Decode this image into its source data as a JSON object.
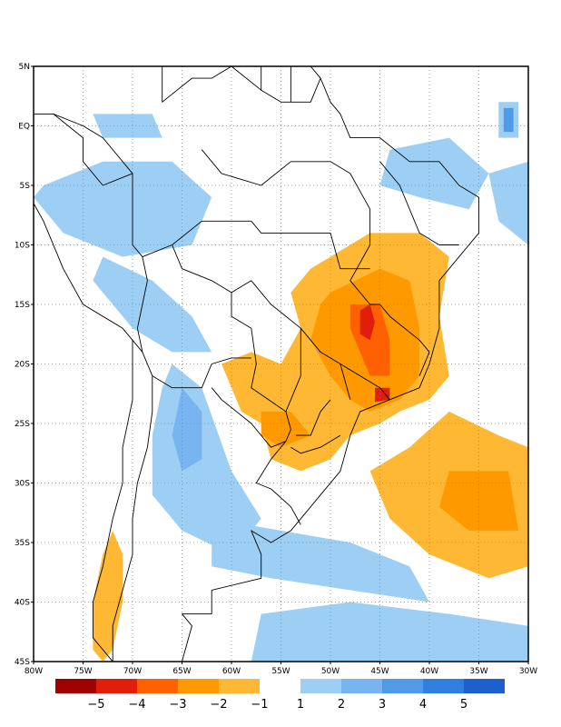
{
  "map": {
    "lon_range": [
      -80,
      -30
    ],
    "lat_range": [
      -45,
      5
    ],
    "grid": "dotted",
    "lat_ticks": [
      {
        "value": 5,
        "label": "5N"
      },
      {
        "value": 0,
        "label": "EQ"
      },
      {
        "value": -5,
        "label": "5S"
      },
      {
        "value": -10,
        "label": "10S"
      },
      {
        "value": -15,
        "label": "15S"
      },
      {
        "value": -20,
        "label": "20S"
      },
      {
        "value": -25,
        "label": "25S"
      },
      {
        "value": -30,
        "label": "30S"
      },
      {
        "value": -35,
        "label": "35S"
      },
      {
        "value": -40,
        "label": "40S"
      },
      {
        "value": -45,
        "label": "45S"
      }
    ],
    "lon_ticks": [
      {
        "value": -80,
        "label": "80W"
      },
      {
        "value": -75,
        "label": "75W"
      },
      {
        "value": -70,
        "label": "70W"
      },
      {
        "value": -65,
        "label": "65W"
      },
      {
        "value": -60,
        "label": "60W"
      },
      {
        "value": -55,
        "label": "55W"
      },
      {
        "value": -50,
        "label": "50W"
      },
      {
        "value": -45,
        "label": "45W"
      },
      {
        "value": -40,
        "label": "40W"
      },
      {
        "value": -35,
        "label": "35W"
      },
      {
        "value": -30,
        "label": "30W"
      }
    ]
  },
  "colorbar": {
    "negative": [
      {
        "color": "#a00000",
        "label": ""
      },
      {
        "color": "#e01e0a",
        "label": "−5"
      },
      {
        "color": "#ff6000",
        "label": "−4"
      },
      {
        "color": "#ff9900",
        "label": "−3"
      },
      {
        "color": "#ffb833",
        "label": "−2"
      }
    ],
    "negative_last_label": "−1",
    "positive": [
      {
        "color": "#9dcff5",
        "label": "1"
      },
      {
        "color": "#78b5f0",
        "label": "2"
      },
      {
        "color": "#519ae8",
        "label": "3"
      },
      {
        "color": "#2f7ee0",
        "label": "4"
      },
      {
        "color": "#1c5fcf",
        "label": "5"
      }
    ]
  },
  "colors": {
    "neg_light": "#ffb833",
    "neg_mid": "#ff9900",
    "neg_strong": "#ff6000",
    "neg_stronger": "#e01e0a",
    "neg_max": "#a00000",
    "pos_light": "#9dcff5",
    "pos_mid": "#78b5f0",
    "pos_strong": "#519ae8",
    "pos_max": "#1c5fcf"
  },
  "anomaly_regions": [
    {
      "id": "se-brazil-deficit",
      "level": -1,
      "points": [
        [
          -52,
          -12
        ],
        [
          -46,
          -9
        ],
        [
          -41,
          -9
        ],
        [
          -38,
          -11
        ],
        [
          -39,
          -16
        ],
        [
          -38,
          -21
        ],
        [
          -40,
          -23
        ],
        [
          -43,
          -24
        ],
        [
          -45,
          -25
        ],
        [
          -48,
          -26
        ],
        [
          -50,
          -28
        ],
        [
          -53,
          -29
        ],
        [
          -56,
          -28
        ],
        [
          -57,
          -25
        ],
        [
          -59,
          -24
        ],
        [
          -61,
          -20
        ],
        [
          -58,
          -19
        ],
        [
          -55,
          -20
        ],
        [
          -53,
          -17
        ],
        [
          -54,
          -14
        ]
      ]
    },
    {
      "id": "se-brazil-core",
      "level": -2,
      "points": [
        [
          -50,
          -14
        ],
        [
          -45,
          -12
        ],
        [
          -42,
          -13
        ],
        [
          -41,
          -17
        ],
        [
          -41,
          -21
        ],
        [
          -43,
          -23
        ],
        [
          -46,
          -24
        ],
        [
          -48,
          -23
        ],
        [
          -50,
          -21
        ],
        [
          -52,
          -18
        ],
        [
          -51,
          -15
        ]
      ]
    },
    {
      "id": "se-brazil-inner",
      "level": -3,
      "points": [
        [
          -48,
          -15
        ],
        [
          -45,
          -15
        ],
        [
          -44,
          -18
        ],
        [
          -44,
          -21
        ],
        [
          -46,
          -21
        ],
        [
          -47,
          -19
        ],
        [
          -48,
          -17
        ]
      ]
    },
    {
      "id": "minas-peak",
      "level": -4,
      "points": [
        [
          -47,
          -15.5
        ],
        [
          -46,
          -15
        ],
        [
          -45.5,
          -16.5
        ],
        [
          -46,
          -18
        ],
        [
          -47,
          -17.5
        ]
      ]
    },
    {
      "id": "sao-paulo-peak",
      "level": -4,
      "points": [
        [
          -45.5,
          -22
        ],
        [
          -44,
          -22
        ],
        [
          -44,
          -23
        ],
        [
          -45.5,
          -23.2
        ]
      ]
    },
    {
      "id": "paraguay-deficit",
      "level": -2,
      "points": [
        [
          -57,
          -24
        ],
        [
          -54,
          -24
        ],
        [
          -52,
          -26
        ],
        [
          -55,
          -27
        ],
        [
          -57,
          -26
        ]
      ]
    },
    {
      "id": "atlantic-deficit",
      "level": -1,
      "points": [
        [
          -38,
          -24
        ],
        [
          -33,
          -26
        ],
        [
          -30,
          -27
        ],
        [
          -30,
          -37
        ],
        [
          -34,
          -38
        ],
        [
          -40,
          -36
        ],
        [
          -44,
          -33
        ],
        [
          -46,
          -29
        ],
        [
          -42,
          -27
        ]
      ]
    },
    {
      "id": "atlantic-core",
      "level": -2,
      "points": [
        [
          -38,
          -29
        ],
        [
          -32,
          -29
        ],
        [
          -31,
          -34
        ],
        [
          -36,
          -34
        ],
        [
          -39,
          -32
        ]
      ]
    },
    {
      "id": "chile-deficit",
      "level": -1,
      "points": [
        [
          -72,
          -34
        ],
        [
          -71,
          -36
        ],
        [
          -71,
          -40
        ],
        [
          -72,
          -44
        ],
        [
          -73,
          -45
        ],
        [
          -74,
          -44
        ],
        [
          -74,
          -40
        ],
        [
          -73,
          -36
        ]
      ]
    },
    {
      "id": "amazon-surplus",
      "level": 1,
      "points": [
        [
          -79,
          -5
        ],
        [
          -73,
          -3
        ],
        [
          -66,
          -3
        ],
        [
          -62,
          -6
        ],
        [
          -64,
          -10
        ],
        [
          -71,
          -11
        ],
        [
          -77,
          -9
        ],
        [
          -80,
          -6
        ]
      ]
    },
    {
      "id": "andes-surplus",
      "level": 1,
      "points": [
        [
          -73,
          -11
        ],
        [
          -68,
          -13
        ],
        [
          -64,
          -16
        ],
        [
          -62,
          -19
        ],
        [
          -66,
          -19
        ],
        [
          -70,
          -17
        ],
        [
          -74,
          -13
        ]
      ]
    },
    {
      "id": "argentina-surplus",
      "level": 1,
      "points": [
        [
          -66,
          -20
        ],
        [
          -63,
          -22
        ],
        [
          -60,
          -29
        ],
        [
          -57,
          -33
        ],
        [
          -60,
          -36
        ],
        [
          -65,
          -34
        ],
        [
          -68,
          -31
        ],
        [
          -68,
          -26
        ],
        [
          -67,
          -22
        ]
      ]
    },
    {
      "id": "argentina-core",
      "level": 2,
      "points": [
        [
          -65,
          -22
        ],
        [
          -63,
          -24
        ],
        [
          -63,
          -28
        ],
        [
          -65,
          -29
        ],
        [
          -66,
          -26
        ]
      ]
    },
    {
      "id": "south-atlantic-surplus",
      "level": 1,
      "points": [
        [
          -62,
          -33
        ],
        [
          -55,
          -34
        ],
        [
          -48,
          -35
        ],
        [
          -42,
          -37
        ],
        [
          -40,
          -40
        ],
        [
          -48,
          -39
        ],
        [
          -56,
          -38
        ],
        [
          -62,
          -37
        ]
      ]
    },
    {
      "id": "patagonia-surplus",
      "level": 1,
      "points": [
        [
          -57,
          -41
        ],
        [
          -48,
          -40
        ],
        [
          -38,
          -41
        ],
        [
          -30,
          -42
        ],
        [
          -30,
          -45
        ],
        [
          -58,
          -45
        ]
      ]
    },
    {
      "id": "ne-brazil-surplus",
      "level": 1,
      "points": [
        [
          -44,
          -2
        ],
        [
          -38,
          -1
        ],
        [
          -34,
          -4
        ],
        [
          -36,
          -7
        ],
        [
          -41,
          -6
        ],
        [
          -45,
          -5
        ]
      ]
    },
    {
      "id": "east-atlantic-surplus",
      "level": 1,
      "points": [
        [
          -34,
          -4
        ],
        [
          -30,
          -3
        ],
        [
          -30,
          -10
        ],
        [
          -33,
          -8
        ]
      ]
    },
    {
      "id": "equatorial-surplus",
      "level": 1,
      "points": [
        [
          -33,
          2
        ],
        [
          -31,
          2
        ],
        [
          -31,
          -1
        ],
        [
          -33,
          -1
        ]
      ]
    },
    {
      "id": "equatorial-core",
      "level": 3,
      "points": [
        [
          -32.5,
          1.5
        ],
        [
          -31.5,
          1.5
        ],
        [
          -31.5,
          -0.5
        ],
        [
          -32.5,
          -0.5
        ]
      ]
    },
    {
      "id": "guyana-surplus",
      "level": 1,
      "points": [
        [
          -74,
          1
        ],
        [
          -68,
          1
        ],
        [
          -67,
          -1
        ],
        [
          -73,
          -1
        ]
      ]
    }
  ],
  "borders": [
    [
      [
        -77,
        7
      ],
      [
        -73,
        12
      ],
      [
        -70,
        12
      ],
      [
        -66,
        10
      ],
      [
        -62,
        11
      ],
      [
        -60,
        8
      ],
      [
        -57,
        6
      ],
      [
        -54,
        6
      ],
      [
        -52,
        5
      ],
      [
        -51,
        4
      ],
      [
        -50,
        2
      ],
      [
        -49,
        1
      ],
      [
        -48,
        -1
      ],
      [
        -45,
        -1
      ],
      [
        -42,
        -3
      ],
      [
        -39,
        -3
      ],
      [
        -37,
        -5
      ],
      [
        -35,
        -6
      ],
      [
        -35,
        -9
      ],
      [
        -37,
        -11
      ],
      [
        -39,
        -13
      ],
      [
        -39,
        -17
      ],
      [
        -40,
        -20
      ],
      [
        -41,
        -22
      ],
      [
        -44,
        -23
      ],
      [
        -47,
        -24
      ],
      [
        -48,
        -26
      ],
      [
        -49,
        -29
      ],
      [
        -51,
        -31
      ],
      [
        -53,
        -33
      ],
      [
        -54,
        -34
      ],
      [
        -56,
        -35
      ],
      [
        -58,
        -34
      ],
      [
        -57,
        -36
      ],
      [
        -57,
        -38
      ],
      [
        -62,
        -39
      ],
      [
        -62,
        -41
      ],
      [
        -65,
        -41
      ],
      [
        -64,
        -42
      ],
      [
        -65,
        -45
      ]
    ],
    [
      [
        -72,
        -45
      ],
      [
        -74,
        -43
      ],
      [
        -74,
        -40
      ],
      [
        -73,
        -37
      ],
      [
        -72,
        -33
      ],
      [
        -71,
        -30
      ],
      [
        -71,
        -27
      ],
      [
        -70,
        -23
      ],
      [
        -70,
        -18
      ],
      [
        -71,
        -17
      ],
      [
        -75,
        -15
      ],
      [
        -77,
        -12
      ],
      [
        -79,
        -8
      ],
      [
        -81,
        -5
      ],
      [
        -80,
        -2
      ],
      [
        -80,
        1
      ]
    ],
    [
      [
        -80,
        1
      ],
      [
        -78,
        1
      ],
      [
        -75,
        -1
      ],
      [
        -75,
        -3
      ],
      [
        -73,
        -5
      ]
    ],
    [
      [
        -73,
        -5
      ],
      [
        -70,
        -4
      ],
      [
        -70,
        -10
      ],
      [
        -69,
        -11
      ],
      [
        -66,
        -10
      ],
      [
        -65,
        -12
      ],
      [
        -62,
        -13
      ],
      [
        -60,
        -14
      ],
      [
        -60,
        -16
      ],
      [
        -58,
        -17
      ],
      [
        -57.5,
        -20
      ],
      [
        -58,
        -22
      ],
      [
        -54.5,
        -24
      ],
      [
        -54,
        -25.5
      ],
      [
        -54.5,
        -26.5
      ],
      [
        -56,
        -28
      ],
      [
        -57.5,
        -30
      ],
      [
        -56,
        -30.5
      ],
      [
        -54,
        -32
      ],
      [
        -53,
        -33.5
      ]
    ],
    [
      [
        -69,
        -11
      ],
      [
        -68.5,
        -13
      ],
      [
        -69,
        -15
      ],
      [
        -69.5,
        -17
      ],
      [
        -69,
        -19
      ],
      [
        -68,
        -21
      ],
      [
        -66,
        -22
      ],
      [
        -63,
        -22
      ],
      [
        -62,
        -20
      ],
      [
        -60,
        -19.5
      ],
      [
        -58,
        -19.5
      ]
    ],
    [
      [
        -62,
        -22
      ],
      [
        -61,
        -23
      ],
      [
        -58,
        -25
      ],
      [
        -56,
        -27
      ],
      [
        -54.5,
        -26.5
      ]
    ],
    [
      [
        -70,
        12
      ],
      [
        -70,
        7
      ],
      [
        -67,
        6
      ],
      [
        -67,
        2
      ],
      [
        -64,
        4
      ],
      [
        -62,
        4
      ],
      [
        -60,
        5
      ],
      [
        -60,
        8
      ]
    ],
    [
      [
        -60,
        5
      ],
      [
        -57,
        3
      ],
      [
        -57,
        6
      ]
    ],
    [
      [
        -57,
        3
      ],
      [
        -55,
        2
      ],
      [
        -54,
        2
      ],
      [
        -54,
        6
      ]
    ],
    [
      [
        -54,
        2
      ],
      [
        -52,
        2
      ],
      [
        -51,
        4
      ]
    ],
    [
      [
        -70,
        -4
      ],
      [
        -73,
        -1
      ],
      [
        -75,
        0
      ],
      [
        -78,
        1
      ]
    ],
    [
      [
        -69,
        -19
      ],
      [
        -70,
        -18
      ]
    ],
    [
      [
        -68,
        -21
      ],
      [
        -68,
        -24
      ],
      [
        -68.5,
        -27
      ],
      [
        -69.5,
        -30
      ],
      [
        -70,
        -33
      ],
      [
        -70,
        -36
      ],
      [
        -71,
        -39
      ],
      [
        -72,
        -42
      ],
      [
        -72,
        -45
      ]
    ],
    [
      [
        -48,
        -4
      ],
      [
        -46,
        -7
      ],
      [
        -46,
        -10
      ],
      [
        -48,
        -13
      ],
      [
        -46,
        -15
      ],
      [
        -45,
        -15
      ]
    ],
    [
      [
        -45,
        -3
      ],
      [
        -43,
        -5
      ],
      [
        -41,
        -9
      ],
      [
        -39,
        -10
      ],
      [
        -37,
        -10
      ]
    ],
    [
      [
        -58,
        -8
      ],
      [
        -57,
        -9
      ],
      [
        -50,
        -9
      ],
      [
        -49,
        -12
      ],
      [
        -46,
        -12
      ]
    ],
    [
      [
        -60,
        -14
      ],
      [
        -58,
        -13
      ],
      [
        -56,
        -15
      ],
      [
        -53,
        -17
      ],
      [
        -51,
        -19
      ],
      [
        -49,
        -20
      ],
      [
        -48,
        -23
      ]
    ],
    [
      [
        -53,
        -17
      ],
      [
        -53,
        -21
      ],
      [
        -54,
        -23
      ],
      [
        -54.5,
        -24
      ]
    ],
    [
      [
        -45,
        -15
      ],
      [
        -44,
        -16
      ],
      [
        -41,
        -18
      ],
      [
        -40,
        -19
      ],
      [
        -41,
        -21
      ]
    ],
    [
      [
        -44,
        -23
      ],
      [
        -45,
        -22
      ],
      [
        -47,
        -21
      ],
      [
        -49,
        -20
      ]
    ],
    [
      [
        -50,
        -23
      ],
      [
        -51,
        -24
      ],
      [
        -52,
        -26
      ],
      [
        -53.5,
        -26
      ]
    ],
    [
      [
        -49,
        -26
      ],
      [
        -51,
        -27
      ],
      [
        -53,
        -27.5
      ],
      [
        -54,
        -27
      ]
    ],
    [
      [
        -63,
        -2
      ],
      [
        -61,
        -4
      ],
      [
        -57,
        -5
      ],
      [
        -54,
        -3
      ],
      [
        -50,
        -3
      ],
      [
        -48,
        -4
      ]
    ],
    [
      [
        -66,
        -10
      ],
      [
        -63,
        -8
      ],
      [
        -60,
        -8
      ],
      [
        -58,
        -8
      ]
    ]
  ]
}
